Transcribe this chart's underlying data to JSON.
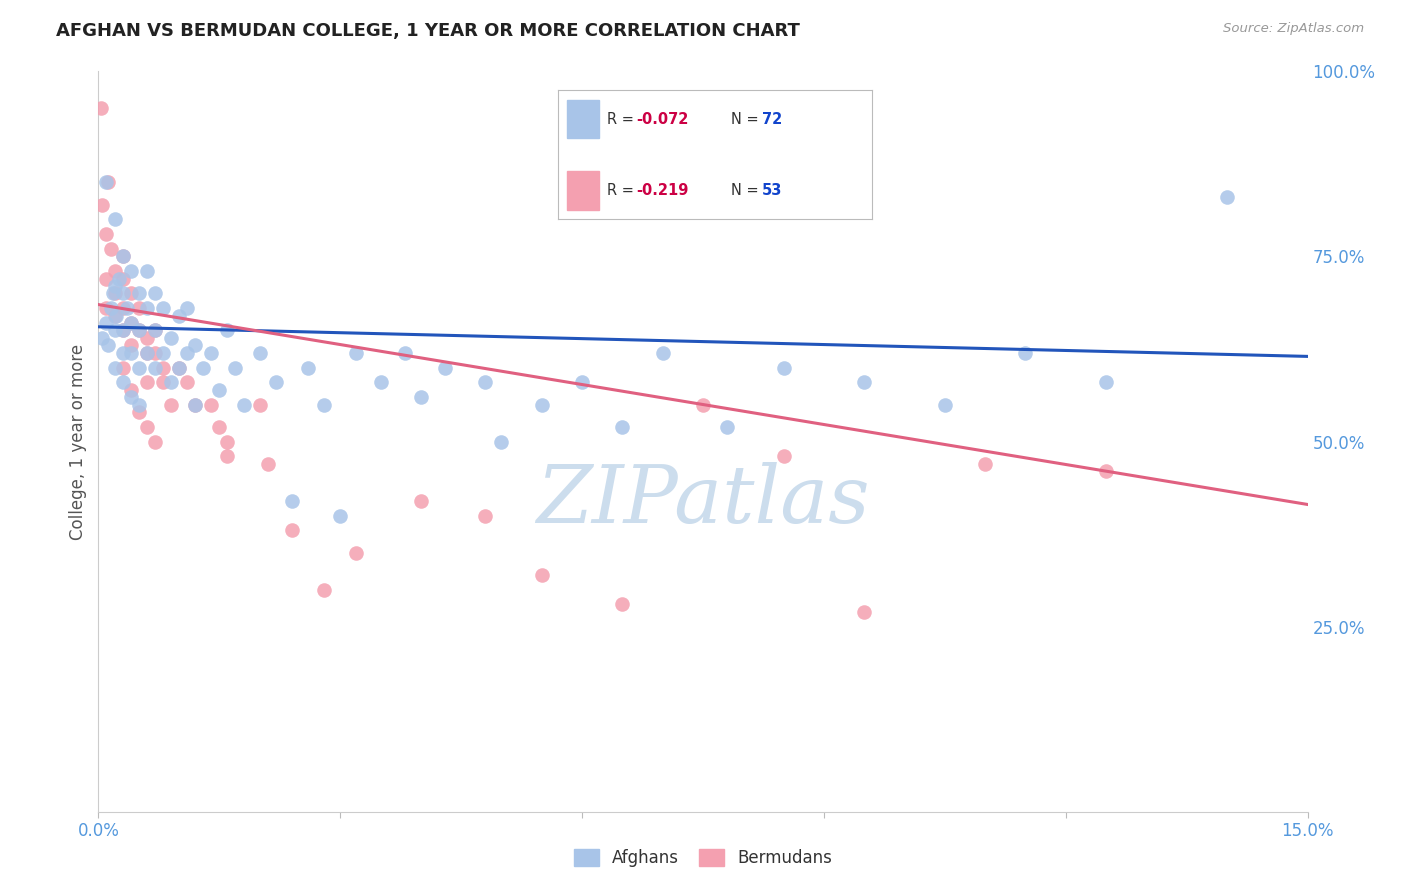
{
  "title": "AFGHAN VS BERMUDAN COLLEGE, 1 YEAR OR MORE CORRELATION CHART",
  "source": "Source: ZipAtlas.com",
  "ylabel": "College, 1 year or more",
  "xmin": 0.0,
  "xmax": 0.15,
  "ymin": 0.0,
  "ymax": 1.0,
  "afghan_color": "#a8c4e8",
  "bermudan_color": "#f4a0b0",
  "afghan_line_color": "#2255bb",
  "bermudan_line_color": "#e06080",
  "r_color": "#cc0044",
  "n_color": "#1144cc",
  "axis_label_color": "#5599dd",
  "grid_color": "#ccccdd",
  "watermark_color": "#ccdded",
  "background_color": "#ffffff",
  "legend_label_afghan": "Afghans",
  "legend_label_bermudan": "Bermudans",
  "afghan_line_x0": 0.0,
  "afghan_line_y0": 0.655,
  "afghan_line_x1": 0.15,
  "afghan_line_y1": 0.615,
  "bermudan_line_x0": 0.0,
  "bermudan_line_y0": 0.685,
  "bermudan_line_x1": 0.15,
  "bermudan_line_y1": 0.415,
  "afghan_x": [
    0.0005,
    0.001,
    0.0012,
    0.0015,
    0.0018,
    0.002,
    0.002,
    0.002,
    0.0022,
    0.0025,
    0.003,
    0.003,
    0.003,
    0.003,
    0.003,
    0.0035,
    0.004,
    0.004,
    0.004,
    0.004,
    0.005,
    0.005,
    0.005,
    0.005,
    0.006,
    0.006,
    0.006,
    0.007,
    0.007,
    0.007,
    0.008,
    0.008,
    0.009,
    0.009,
    0.01,
    0.01,
    0.011,
    0.011,
    0.012,
    0.012,
    0.013,
    0.014,
    0.015,
    0.016,
    0.017,
    0.018,
    0.02,
    0.022,
    0.024,
    0.026,
    0.028,
    0.03,
    0.032,
    0.035,
    0.038,
    0.04,
    0.043,
    0.048,
    0.05,
    0.055,
    0.06,
    0.065,
    0.07,
    0.078,
    0.085,
    0.095,
    0.105,
    0.115,
    0.125,
    0.14,
    0.001,
    0.002
  ],
  "afghan_y": [
    0.64,
    0.66,
    0.63,
    0.68,
    0.7,
    0.6,
    0.65,
    0.71,
    0.67,
    0.72,
    0.58,
    0.62,
    0.65,
    0.7,
    0.75,
    0.68,
    0.56,
    0.62,
    0.66,
    0.73,
    0.6,
    0.65,
    0.7,
    0.55,
    0.62,
    0.68,
    0.73,
    0.6,
    0.65,
    0.7,
    0.62,
    0.68,
    0.58,
    0.64,
    0.6,
    0.67,
    0.62,
    0.68,
    0.55,
    0.63,
    0.6,
    0.62,
    0.57,
    0.65,
    0.6,
    0.55,
    0.62,
    0.58,
    0.42,
    0.6,
    0.55,
    0.4,
    0.62,
    0.58,
    0.62,
    0.56,
    0.6,
    0.58,
    0.5,
    0.55,
    0.58,
    0.52,
    0.62,
    0.52,
    0.6,
    0.58,
    0.55,
    0.62,
    0.58,
    0.83,
    0.85,
    0.8
  ],
  "bermudan_x": [
    0.0003,
    0.0005,
    0.001,
    0.001,
    0.001,
    0.0012,
    0.0015,
    0.002,
    0.002,
    0.002,
    0.003,
    0.003,
    0.003,
    0.003,
    0.004,
    0.004,
    0.004,
    0.005,
    0.005,
    0.006,
    0.006,
    0.006,
    0.007,
    0.007,
    0.008,
    0.008,
    0.009,
    0.01,
    0.011,
    0.012,
    0.014,
    0.015,
    0.016,
    0.02,
    0.024,
    0.028,
    0.032,
    0.04,
    0.048,
    0.055,
    0.065,
    0.075,
    0.085,
    0.095,
    0.11,
    0.125,
    0.003,
    0.004,
    0.005,
    0.006,
    0.007,
    0.016,
    0.021
  ],
  "bermudan_y": [
    0.95,
    0.82,
    0.78,
    0.72,
    0.68,
    0.85,
    0.76,
    0.73,
    0.7,
    0.67,
    0.75,
    0.72,
    0.68,
    0.65,
    0.7,
    0.66,
    0.63,
    0.68,
    0.65,
    0.64,
    0.62,
    0.58,
    0.65,
    0.62,
    0.6,
    0.58,
    0.55,
    0.6,
    0.58,
    0.55,
    0.55,
    0.52,
    0.5,
    0.55,
    0.38,
    0.3,
    0.35,
    0.42,
    0.4,
    0.32,
    0.28,
    0.55,
    0.48,
    0.27,
    0.47,
    0.46,
    0.6,
    0.57,
    0.54,
    0.52,
    0.5,
    0.48,
    0.47
  ],
  "yticks": [
    0.0,
    0.25,
    0.5,
    0.75,
    1.0
  ],
  "yticklabels": [
    "",
    "25.0%",
    "50.0%",
    "75.0%",
    "100.0%"
  ],
  "xticks": [
    0.0,
    0.03,
    0.06,
    0.09,
    0.12,
    0.15
  ],
  "xticklabels_bottom": [
    "0.0%",
    "",
    "",
    "",
    "",
    "15.0%"
  ]
}
